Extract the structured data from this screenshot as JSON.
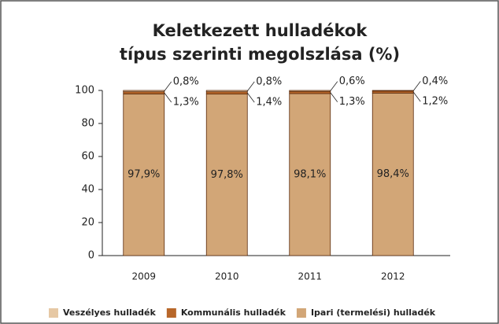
{
  "chart_data": {
    "type": "stacked_bar",
    "title": "Keletkezett hulladékok",
    "subtitle": "típus szerinti megolszlása (%)",
    "categories": [
      "2009",
      "2010",
      "2011",
      "2012"
    ],
    "series": [
      {
        "name": "Veszélyes hulladék",
        "color": "#e6c8a4",
        "values": [
          0.8,
          0.8,
          0.6,
          0.4
        ],
        "value_labels": [
          "0,8%",
          "0,8%",
          "0,6%",
          "0,4%"
        ]
      },
      {
        "name": "Kommunális hulladék",
        "color": "#b8672a",
        "values": [
          1.3,
          1.4,
          1.3,
          1.2
        ],
        "value_labels": [
          "1,3%",
          "1,4%",
          "1,3%",
          "1,2%"
        ]
      },
      {
        "name": "Ipari (termelési) hulladék",
        "color": "#d2a677",
        "values": [
          97.9,
          97.8,
          98.1,
          98.4
        ],
        "value_labels": [
          "97,9%",
          "97,8%",
          "98,1%",
          "98,4%"
        ]
      }
    ],
    "ylim": [
      0,
      100
    ],
    "yticks": [
      0,
      20,
      40,
      60,
      80,
      100
    ],
    "grid": false
  }
}
